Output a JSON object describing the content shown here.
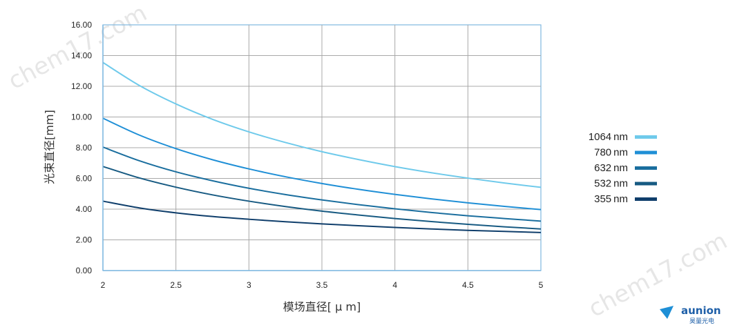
{
  "chart_data": {
    "type": "line",
    "title": "",
    "xlabel": "模场直径[ μ m]",
    "ylabel": "光束直径[mm]",
    "xlim": [
      2,
      5
    ],
    "ylim": [
      0,
      16
    ],
    "x_ticks": [
      "2",
      "2.5",
      "3",
      "3.5",
      "4",
      "4.5",
      "5"
    ],
    "y_ticks": [
      "0.00",
      "2.00",
      "4.00",
      "6.00",
      "8.00",
      "10.00",
      "12.00",
      "14.00",
      "16.00"
    ],
    "x": [
      2,
      2.25,
      2.5,
      2.75,
      3,
      3.25,
      3.5,
      3.75,
      4,
      4.25,
      4.5,
      4.75,
      5
    ],
    "grid": true,
    "legend_position": "right",
    "series": [
      {
        "name": "1064 nm",
        "color": "#6fcaeb",
        "values": [
          13.55,
          12.05,
          10.85,
          9.85,
          9.03,
          8.34,
          7.74,
          7.23,
          6.77,
          6.37,
          6.02,
          5.7,
          5.42
        ]
      },
      {
        "name": "780 nm",
        "color": "#1f8fd6",
        "values": [
          9.92,
          8.82,
          7.94,
          7.22,
          6.62,
          6.11,
          5.67,
          5.29,
          4.96,
          4.67,
          4.41,
          4.18,
          3.97
        ]
      },
      {
        "name": "632 nm",
        "color": "#1a6e9e",
        "values": [
          8.04,
          7.15,
          6.43,
          5.85,
          5.36,
          4.95,
          4.6,
          4.29,
          4.02,
          3.78,
          3.57,
          3.39,
          3.22
        ]
      },
      {
        "name": "532 nm",
        "color": "#175a82",
        "values": [
          6.78,
          6.03,
          5.43,
          4.93,
          4.52,
          4.17,
          3.87,
          3.62,
          3.39,
          3.19,
          3.01,
          2.85,
          2.71
        ]
      },
      {
        "name": "355 nm",
        "color": "#0f3e6b",
        "values": [
          4.52,
          4.08,
          3.76,
          3.52,
          3.34,
          3.18,
          3.04,
          2.92,
          2.81,
          2.71,
          2.62,
          2.55,
          2.48
        ]
      }
    ]
  },
  "watermarks": [
    "chem17.com",
    "chem17.com"
  ],
  "logo": {
    "name": "aunion",
    "subtitle": "昊量光电"
  }
}
